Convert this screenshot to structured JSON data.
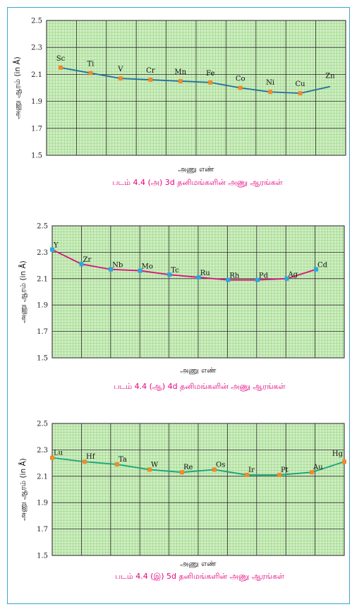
{
  "chart_data": [
    {
      "type": "line",
      "x_label": "அணு எண்",
      "y_label": "அணு ஆரம் (in Å)",
      "caption": "படம் 4.4 (அ)  3d  தனிமங்களின் அணு ஆரங்கள்",
      "ylim": [
        1.5,
        2.5
      ],
      "y_ticks": [
        "2.5",
        "2.3",
        "2.1",
        "1.9",
        "1.7",
        "1.5"
      ],
      "line_color": "#1f6f9f",
      "marker_color": "#f08a2c",
      "grid": true,
      "categories": [
        "Sc",
        "Ti",
        "V",
        "Cr",
        "Mn",
        "Fe",
        "Co",
        "Ni",
        "Cu",
        "Zn"
      ],
      "values": [
        2.15,
        2.11,
        2.07,
        2.06,
        2.05,
        2.04,
        2.0,
        1.97,
        1.96,
        2.01
      ],
      "markers": [
        true,
        true,
        true,
        true,
        true,
        true,
        true,
        true,
        true,
        false
      ]
    },
    {
      "type": "line",
      "x_label": "அணு எண்",
      "y_label": "அணு ஆரம் (in Å)",
      "caption": "படம் 4.4 (ஆ)  4d  தனிமங்களின் அணு ஆரங்கள்",
      "ylim": [
        1.5,
        2.5
      ],
      "y_ticks": [
        "2.5",
        "2.3",
        "2.1",
        "1.9",
        "1.7",
        "1.5"
      ],
      "line_color": "#d8157a",
      "marker_color": "#29a9e0",
      "grid": true,
      "categories": [
        "Y",
        "Zr",
        "Nb",
        "Mo",
        "Tc",
        "Ru",
        "Rh",
        "Pd",
        "Ag",
        "Cd"
      ],
      "values": [
        2.32,
        2.21,
        2.17,
        2.16,
        2.13,
        2.11,
        2.09,
        2.09,
        2.1,
        2.17
      ],
      "markers": [
        true,
        true,
        true,
        true,
        true,
        true,
        true,
        true,
        true,
        true
      ]
    },
    {
      "type": "line",
      "x_label": "அணு எண்",
      "y_label": "அணு ஆரம் (in Å)",
      "caption": "படம் 4.4 (இ)  5d  தனிமங்களின் அணு ஆரங்கள்",
      "ylim": [
        1.5,
        2.5
      ],
      "y_ticks": [
        "2.5",
        "2.3",
        "2.1",
        "1.9",
        "1.7",
        "1.5"
      ],
      "line_color": "#1aa37a",
      "marker_color": "#f08a2c",
      "grid": true,
      "categories": [
        "Lu",
        "Hf",
        "Ta",
        "W",
        "Re",
        "Os",
        "Ir",
        "Pt",
        "Au",
        "Hg"
      ],
      "label_text": [
        "Lu",
        "Hf",
        "Ta",
        "W",
        "Re",
        "Os",
        "Ir",
        "Pt",
        "Au",
        "Hg"
      ],
      "values": [
        2.24,
        2.21,
        2.19,
        2.15,
        2.13,
        2.15,
        2.11,
        2.11,
        2.13,
        2.21
      ],
      "markers": [
        true,
        true,
        true,
        true,
        true,
        true,
        true,
        true,
        true,
        true
      ]
    }
  ]
}
